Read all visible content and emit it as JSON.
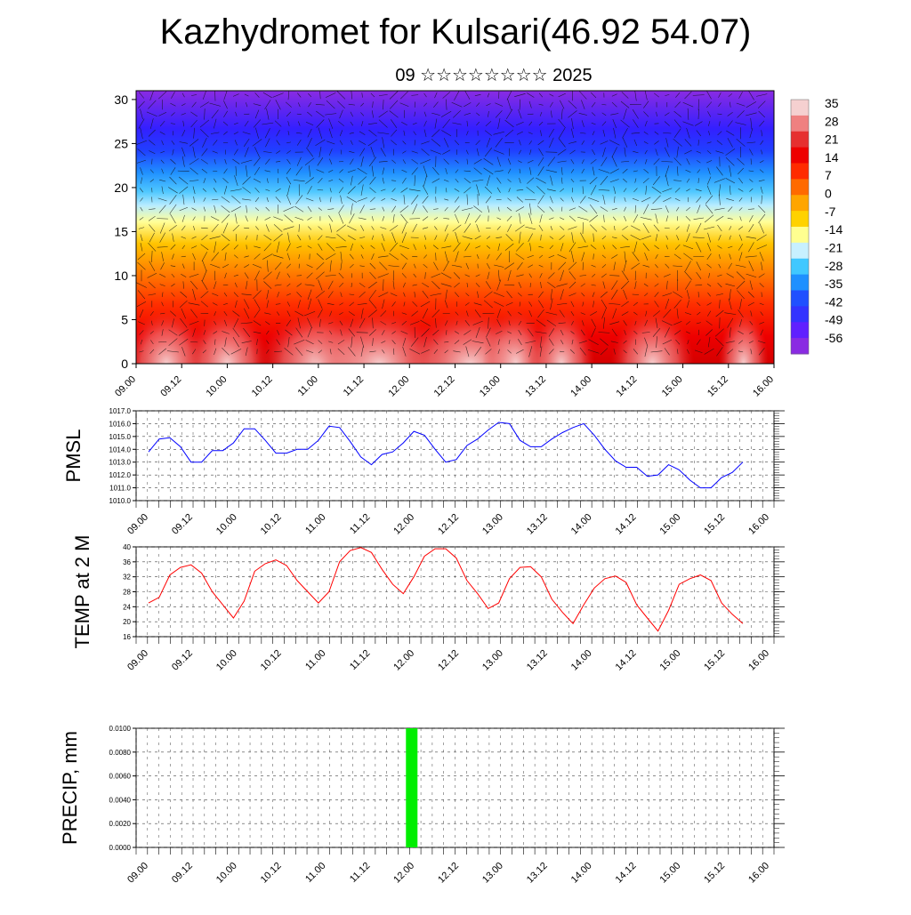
{
  "header": {
    "title": "Kazhydromet for Kulsari(46.92 54.07)",
    "subtitle": "09 ☆☆☆☆☆☆☆☆ 2025"
  },
  "x_tick_labels": [
    "09.00",
    "09.12",
    "10.00",
    "10.12",
    "11.00",
    "11.12",
    "12.00",
    "12.12",
    "13.00",
    "13.12",
    "14.00",
    "14.12",
    "15.00",
    "15.12",
    "16.00"
  ],
  "colors": {
    "pmsl_line": "#0000ff",
    "temp_line": "#ff0000",
    "precip_bar": "#00ee00"
  },
  "chart_data": [
    {
      "type": "heatmap",
      "title": "",
      "xlabel": "",
      "ylabel": "",
      "x_range": [
        0,
        168
      ],
      "ylim": [
        0,
        31
      ],
      "y_ticks": [
        0,
        5,
        10,
        15,
        20,
        25,
        30
      ],
      "x_ticks": [
        "09.00",
        "09.12",
        "10.00",
        "10.12",
        "11.00",
        "11.12",
        "12.00",
        "12.12",
        "13.00",
        "13.12",
        "14.00",
        "14.12",
        "15.00",
        "15.12",
        "16.00"
      ],
      "colorbar": {
        "labels": [
          "35",
          "28",
          "21",
          "14",
          "7",
          "0",
          "-7",
          "-14",
          "-21",
          "-28",
          "-35",
          "-42",
          "-49",
          "-56"
        ],
        "palette": [
          "#f5d0d0",
          "#ef8080",
          "#e63030",
          "#ee0000",
          "#ff2b00",
          "#ff6a00",
          "#ffa500",
          "#ffd200",
          "#ffff90",
          "#c8f0ff",
          "#40c8ff",
          "#1e90ff",
          "#2050ff",
          "#3333ff",
          "#6020ff",
          "#8a2be2"
        ]
      },
      "overlay": "wind vectors"
    },
    {
      "type": "line",
      "title": "",
      "xlabel": "",
      "ylabel": "PMSL",
      "ylim": [
        1010.0,
        1017.0
      ],
      "y_ticks": [
        "1010.0",
        "1011.0",
        "1012.0",
        "1013.0",
        "1014.0",
        "1015.0",
        "1016.0",
        "1017.0"
      ],
      "x_hours_step": 3,
      "grid": true,
      "series": [
        {
          "values": [
            1013.8,
            1014.8,
            1014.9,
            1014.2,
            1013.0,
            1013.0,
            1013.9,
            1013.9,
            1014.5,
            1015.6,
            1015.6,
            1014.7,
            1013.7,
            1013.7,
            1014.0,
            1014.0,
            1014.7,
            1015.8,
            1015.7,
            1014.6,
            1013.4,
            1012.8,
            1013.6,
            1013.8,
            1014.5,
            1015.4,
            1015.1,
            1014.0,
            1013.0,
            1013.2,
            1014.3,
            1014.8,
            1015.5,
            1016.1,
            1016.0,
            1014.7,
            1014.2,
            1014.2,
            1014.8,
            1015.3,
            1015.7,
            1016.0,
            1015.1,
            1014.0,
            1013.1,
            1012.6,
            1012.6,
            1011.9,
            1012.0,
            1012.8,
            1012.4,
            1011.6,
            1011.0,
            1011.0,
            1011.8,
            1012.2,
            1013.0
          ]
        }
      ]
    },
    {
      "type": "line",
      "title": "",
      "xlabel": "",
      "ylabel": "TEMP at 2 M",
      "ylim": [
        16,
        40
      ],
      "y_ticks": [
        "16",
        "20",
        "24",
        "28",
        "32",
        "36",
        "40"
      ],
      "x_hours_step": 3,
      "grid": true,
      "series": [
        {
          "values": [
            25.0,
            26.5,
            32.5,
            34.5,
            35.2,
            33.0,
            28.0,
            24.5,
            21.0,
            25.5,
            33.5,
            35.5,
            36.5,
            35.0,
            31.0,
            28.0,
            25.0,
            28.0,
            36.0,
            39.0,
            39.8,
            38.5,
            34.0,
            30.0,
            27.5,
            32.0,
            37.5,
            39.5,
            39.5,
            37.0,
            31.0,
            27.5,
            23.5,
            25.0,
            31.5,
            34.5,
            34.7,
            32.0,
            26.0,
            22.5,
            19.5,
            24.5,
            29.0,
            31.5,
            32.2,
            30.5,
            24.5,
            21.0,
            17.5,
            23.0,
            30.0,
            31.5,
            32.5,
            31.0,
            25.0,
            22.0,
            19.5
          ]
        }
      ]
    },
    {
      "type": "bar",
      "title": "",
      "xlabel": "",
      "ylabel": "PRECIP, mm",
      "ylim": [
        0.0,
        0.01
      ],
      "y_ticks": [
        "0.0000",
        "0.0020",
        "0.0040",
        "0.0060",
        "0.0080",
        "0.0100"
      ],
      "grid": true,
      "bars": [
        {
          "x_hour": 72,
          "value": 0.01
        }
      ]
    }
  ]
}
